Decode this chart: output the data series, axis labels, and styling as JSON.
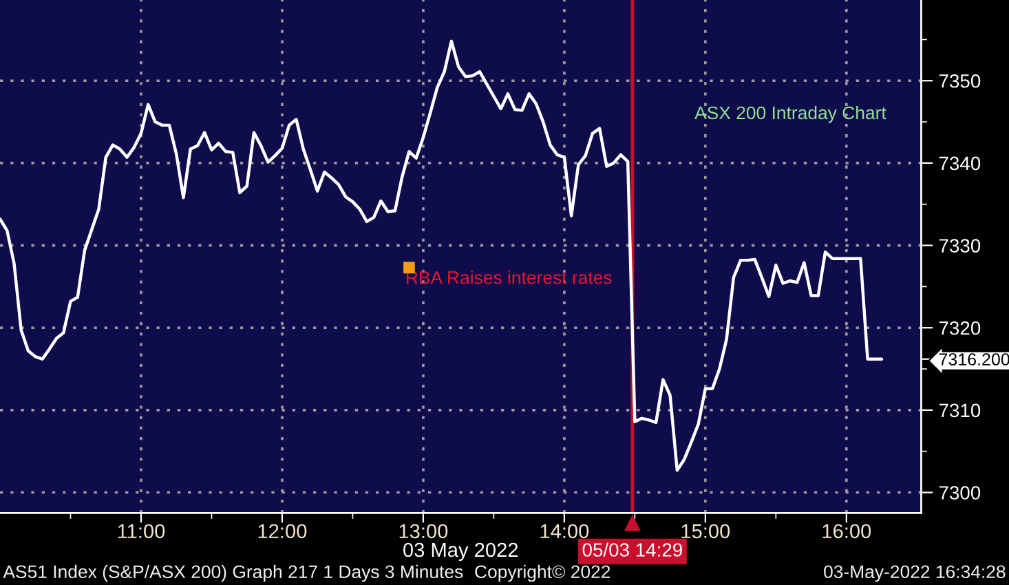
{
  "chart_data": {
    "type": "line",
    "title": "ASX 200 Intraday Chart",
    "xlabel": "03 May 2022",
    "x": [
      10,
      10.05,
      10.1,
      10.15,
      10.2,
      10.25,
      10.3,
      10.35,
      10.4,
      10.45,
      10.5,
      10.55,
      10.6,
      10.65,
      10.7,
      10.75,
      10.8,
      10.85,
      10.9,
      10.95,
      11,
      11.05,
      11.1,
      11.15,
      11.2,
      11.25,
      11.3,
      11.35,
      11.4,
      11.45,
      11.5,
      11.55,
      11.6,
      11.65,
      11.7,
      11.75,
      11.8,
      11.85,
      11.9,
      11.95,
      12,
      12.05,
      12.1,
      12.15,
      12.2,
      12.25,
      12.3,
      12.35,
      12.4,
      12.45,
      12.5,
      12.55,
      12.6,
      12.65,
      12.7,
      12.75,
      12.8,
      12.85,
      12.9,
      12.95,
      13,
      13.05,
      13.1,
      13.15,
      13.2,
      13.25,
      13.3,
      13.35,
      13.4,
      13.45,
      13.5,
      13.55,
      13.6,
      13.65,
      13.7,
      13.75,
      13.8,
      13.85,
      13.9,
      13.95,
      14,
      14.05,
      14.1,
      14.15,
      14.2,
      14.25,
      14.3,
      14.35,
      14.4,
      14.45,
      14.5,
      14.55,
      14.6,
      14.65,
      14.7,
      14.75,
      14.8,
      14.85,
      14.9,
      14.95,
      15,
      15.05,
      15.1,
      15.15,
      15.2,
      15.25,
      15.3,
      15.35,
      15.4,
      15.45,
      15.5,
      15.55,
      15.6,
      15.65,
      15.7,
      15.75,
      15.8,
      15.85,
      15.9,
      15.95,
      16,
      16.05,
      16.1,
      16.15,
      16.2,
      16.25
    ],
    "series": [
      {
        "color": "#ffffff",
        "values": [
          7333.2,
          7331.8,
          7327.8,
          7319.7,
          7317.2,
          7316.5,
          7316.2,
          7317.4,
          7318.7,
          7319.4,
          7323.2,
          7323.7,
          7329.4,
          7331.9,
          7334.4,
          7340.7,
          7342.2,
          7341.7,
          7340.7,
          7341.9,
          7343.6,
          7347.1,
          7345.0,
          7344.6,
          7344.6,
          7341.1,
          7335.8,
          7341.7,
          7342.1,
          7343.7,
          7341.6,
          7342.4,
          7341.4,
          7341.3,
          7336.4,
          7337.2,
          7343.7,
          7342.1,
          7340.1,
          7340.9,
          7341.8,
          7344.6,
          7345.3,
          7341.7,
          7339.2,
          7336.6,
          7338.9,
          7338.2,
          7337.4,
          7335.9,
          7335.3,
          7334.4,
          7332.9,
          7333.4,
          7335.4,
          7334.1,
          7334.2,
          7338.3,
          7341.4,
          7340.6,
          7343.1,
          7346.1,
          7349.2,
          7351.1,
          7354.8,
          7351.7,
          7350.5,
          7350.6,
          7351.1,
          7349.6,
          7348.1,
          7346.6,
          7348.4,
          7346.5,
          7346.4,
          7348.4,
          7347.2,
          7345.0,
          7342.2,
          7341.0,
          7340.7,
          7333.6,
          7339.8,
          7340.9,
          7343.6,
          7344.2,
          7339.6,
          7340.0,
          7341.0,
          7340.2,
          7308.6,
          7309.0,
          7308.8,
          7308.5,
          7313.7,
          7311.8,
          7302.7,
          7304.0,
          7306.1,
          7308.3,
          7312.6,
          7312.6,
          7315.0,
          7318.6,
          7326.1,
          7328.2,
          7328.2,
          7328.3,
          7326.1,
          7323.8,
          7327.6,
          7325.4,
          7325.7,
          7325.5,
          7327.9,
          7323.9,
          7323.9,
          7329.2,
          7328.4,
          7328.4,
          7328.4,
          7328.4,
          7328.4,
          7316.2,
          7316.2,
          7316.2
        ]
      }
    ],
    "xlim": [
      10,
      16.53
    ],
    "xticks": [
      {
        "value": 10.5,
        "label": null
      },
      {
        "value": 11,
        "label": "11:00"
      },
      {
        "value": 11.5,
        "label": null
      },
      {
        "value": 12,
        "label": "12:00"
      },
      {
        "value": 12.5,
        "label": null
      },
      {
        "value": 13,
        "label": "13:00"
      },
      {
        "value": 13.5,
        "label": null
      },
      {
        "value": 14,
        "label": "14:00"
      },
      {
        "value": 14.5,
        "label": null
      },
      {
        "value": 15,
        "label": "15:00"
      },
      {
        "value": 15.5,
        "label": null
      },
      {
        "value": 16,
        "label": "16:00"
      }
    ],
    "ylim": [
      7297.5,
      7359.8
    ],
    "yticks": [
      7300,
      7310,
      7320,
      7330,
      7340,
      7350,
      {
        "value": 7305,
        "label": null
      },
      {
        "value": 7315,
        "label": null
      },
      {
        "value": 7325,
        "label": null
      },
      {
        "value": 7335,
        "label": null
      },
      {
        "value": 7345,
        "label": null
      },
      {
        "value": 7355,
        "label": null
      },
      {
        "value": 7316.2,
        "label": "7316.200"
      }
    ],
    "grid": true,
    "ref_lines": [
      {
        "axis": "x",
        "value": 14.483,
        "label": "05/03 14:29",
        "color": "#c8102e"
      }
    ],
    "annotations": [
      {
        "text": "RBA Raises interest rates",
        "x": 12.9,
        "y": 7327.3
      },
      "AS51 Index (S&P/ASX 200) Graph 217 1 Days 3 Minutes",
      "Copyright© 2022",
      "03-May-2022 16:34:28"
    ]
  }
}
